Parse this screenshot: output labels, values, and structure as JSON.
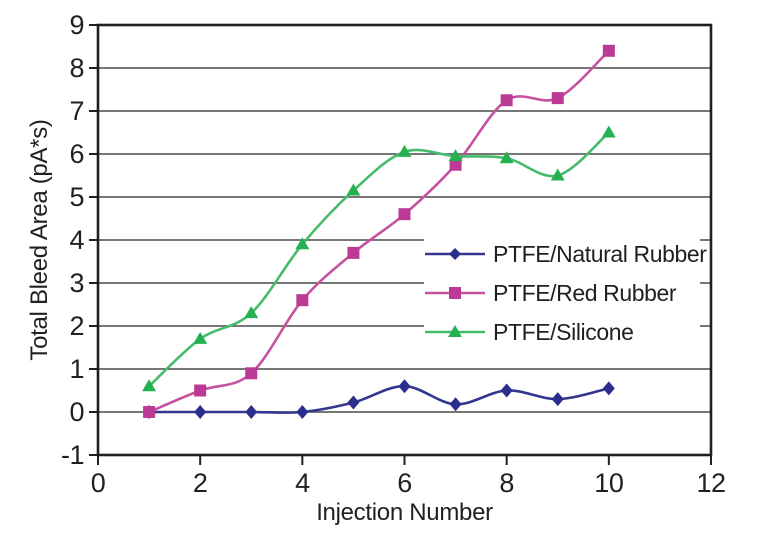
{
  "figure": {
    "background": "#FFFFFF",
    "text_color": "#231F20"
  },
  "chart_data": {
    "type": "line",
    "title": "",
    "xlabel": "Injection Number",
    "ylabel": "Total Bleed Area (pA*s)",
    "xlim": [
      0,
      12
    ],
    "ylim": [
      -1,
      9
    ],
    "x_ticks": [
      0,
      2,
      4,
      6,
      8,
      10,
      12
    ],
    "y_ticks": [
      -1,
      0,
      1,
      2,
      3,
      4,
      5,
      6,
      7,
      8,
      9
    ],
    "grid": "horizontal-only",
    "grid_color": "#4A4A4C",
    "border_color": "#231F20",
    "x": [
      1,
      2,
      3,
      4,
      5,
      6,
      7,
      8,
      9,
      10
    ],
    "series": [
      {
        "name": "PTFE/Natural Rubber",
        "marker": "diamond",
        "color": "#2B2E8C",
        "line_color": "#34378F",
        "values": [
          0,
          0,
          0,
          0,
          0.22,
          0.6,
          0.18,
          0.5,
          0.3,
          0.55
        ]
      },
      {
        "name": "PTFE/Red Rubber",
        "marker": "square",
        "color": "#BB3A95",
        "line_color": "#C4529F",
        "values": [
          0,
          0.5,
          0.9,
          2.6,
          3.7,
          4.6,
          5.75,
          7.25,
          7.3,
          8.4
        ]
      },
      {
        "name": "PTFE/Silicone",
        "marker": "triangle",
        "color": "#26B151",
        "line_color": "#47BB6C",
        "values": [
          0.6,
          1.7,
          2.3,
          3.9,
          5.15,
          6.05,
          5.95,
          5.9,
          5.5,
          6.5
        ]
      }
    ],
    "legend_position": "inside-center-right"
  }
}
